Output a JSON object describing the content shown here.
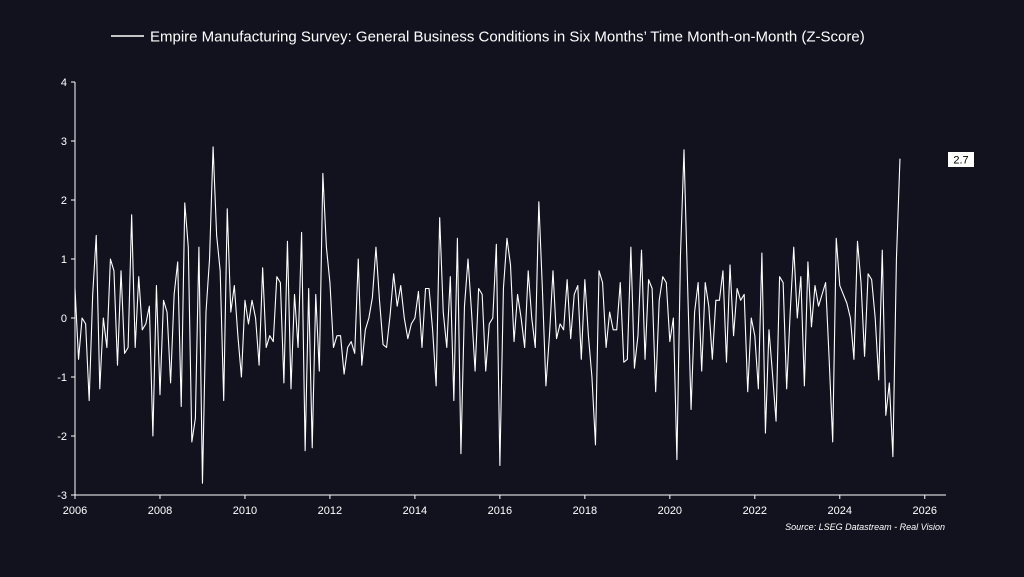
{
  "chart_data": {
    "type": "line",
    "title": "",
    "xlabel": "",
    "ylabel": "",
    "xlim": [
      2006,
      2026.5
    ],
    "ylim": [
      -3,
      4
    ],
    "x_ticks": [
      "2006",
      "2008",
      "2010",
      "2012",
      "2014",
      "2016",
      "2018",
      "2020",
      "2022",
      "2024",
      "2026"
    ],
    "y_ticks": [
      "4",
      "3",
      "2",
      "1",
      "0",
      "-1",
      "-2",
      "-3"
    ],
    "grid": false,
    "legend_position": "top",
    "source": "Source: LSEG Datastream - Real Vision",
    "last_value_label": "2.7",
    "series": [
      {
        "name": "Empire Manufacturing Survey: General Business Conditions in Six Months’ Time Month-on-Month (Z-Score)",
        "color": "#ffffff",
        "start": "2006-01",
        "frequency": "monthly",
        "values": [
          0.5,
          -0.7,
          0.0,
          -0.1,
          -1.4,
          0.4,
          1.4,
          -1.2,
          0.0,
          -0.5,
          1.0,
          0.8,
          -0.8,
          0.8,
          -0.6,
          -0.5,
          1.75,
          -0.5,
          0.7,
          -0.2,
          -0.1,
          0.2,
          -2.0,
          0.55,
          -1.3,
          0.3,
          0.1,
          -1.1,
          0.4,
          0.95,
          -1.5,
          1.95,
          1.2,
          -2.1,
          -1.7,
          1.2,
          -2.8,
          0.1,
          1.0,
          2.9,
          1.4,
          0.8,
          -1.4,
          1.85,
          0.1,
          0.55,
          -0.3,
          -1.0,
          0.3,
          -0.1,
          0.3,
          0.0,
          -0.8,
          0.85,
          -0.5,
          -0.3,
          -0.4,
          0.7,
          0.6,
          -1.1,
          1.3,
          -1.2,
          0.4,
          -0.5,
          1.45,
          -2.25,
          0.5,
          -2.2,
          0.4,
          -0.9,
          2.45,
          1.2,
          0.6,
          -0.5,
          -0.3,
          -0.3,
          -0.95,
          -0.5,
          -0.4,
          -0.6,
          1.0,
          -0.8,
          -0.2,
          0.0,
          0.35,
          1.2,
          0.3,
          -0.45,
          -0.5,
          0.05,
          0.75,
          0.2,
          0.55,
          0.0,
          -0.35,
          -0.1,
          0.0,
          0.45,
          -0.5,
          0.5,
          0.5,
          -0.2,
          -1.15,
          1.7,
          0.1,
          -0.5,
          0.7,
          -1.4,
          1.35,
          -2.3,
          0.2,
          1.0,
          0.1,
          -0.9,
          0.5,
          0.4,
          -0.9,
          -0.1,
          0.0,
          1.25,
          -2.5,
          0.5,
          1.35,
          0.9,
          -0.4,
          0.4,
          0.0,
          -0.5,
          0.8,
          0.0,
          -0.5,
          1.97,
          0.5,
          -1.15,
          -0.3,
          0.8,
          -0.35,
          -0.1,
          -0.2,
          0.65,
          -0.35,
          0.4,
          0.55,
          -0.7,
          0.65,
          -0.3,
          -1.0,
          -2.15,
          0.8,
          0.6,
          -0.5,
          0.1,
          -0.2,
          -0.2,
          0.6,
          -0.75,
          -0.7,
          1.2,
          -0.85,
          -0.3,
          1.15,
          -0.7,
          0.65,
          0.5,
          -1.25,
          0.3,
          0.7,
          0.6,
          -0.4,
          0.0,
          -2.4,
          1.05,
          2.85,
          0.6,
          -1.55,
          0.1,
          0.6,
          -0.9,
          0.6,
          0.2,
          -0.7,
          0.3,
          0.3,
          0.8,
          -0.75,
          0.9,
          -0.3,
          0.5,
          0.3,
          0.4,
          -1.25,
          0.0,
          -0.3,
          -1.2,
          1.1,
          -1.95,
          -0.2,
          -0.95,
          -1.75,
          0.7,
          0.6,
          -1.2,
          0.1,
          1.2,
          0.0,
          0.7,
          -1.15,
          0.95,
          -0.15,
          0.55,
          0.2,
          0.4,
          0.6,
          -0.7,
          -2.1,
          1.35,
          0.55,
          0.4,
          0.25,
          0.0,
          -0.7,
          1.3,
          0.6,
          -0.65,
          0.75,
          0.65,
          0.0,
          -1.05,
          1.15,
          -1.65,
          -1.1,
          -2.35,
          1.0,
          2.7
        ]
      }
    ]
  }
}
